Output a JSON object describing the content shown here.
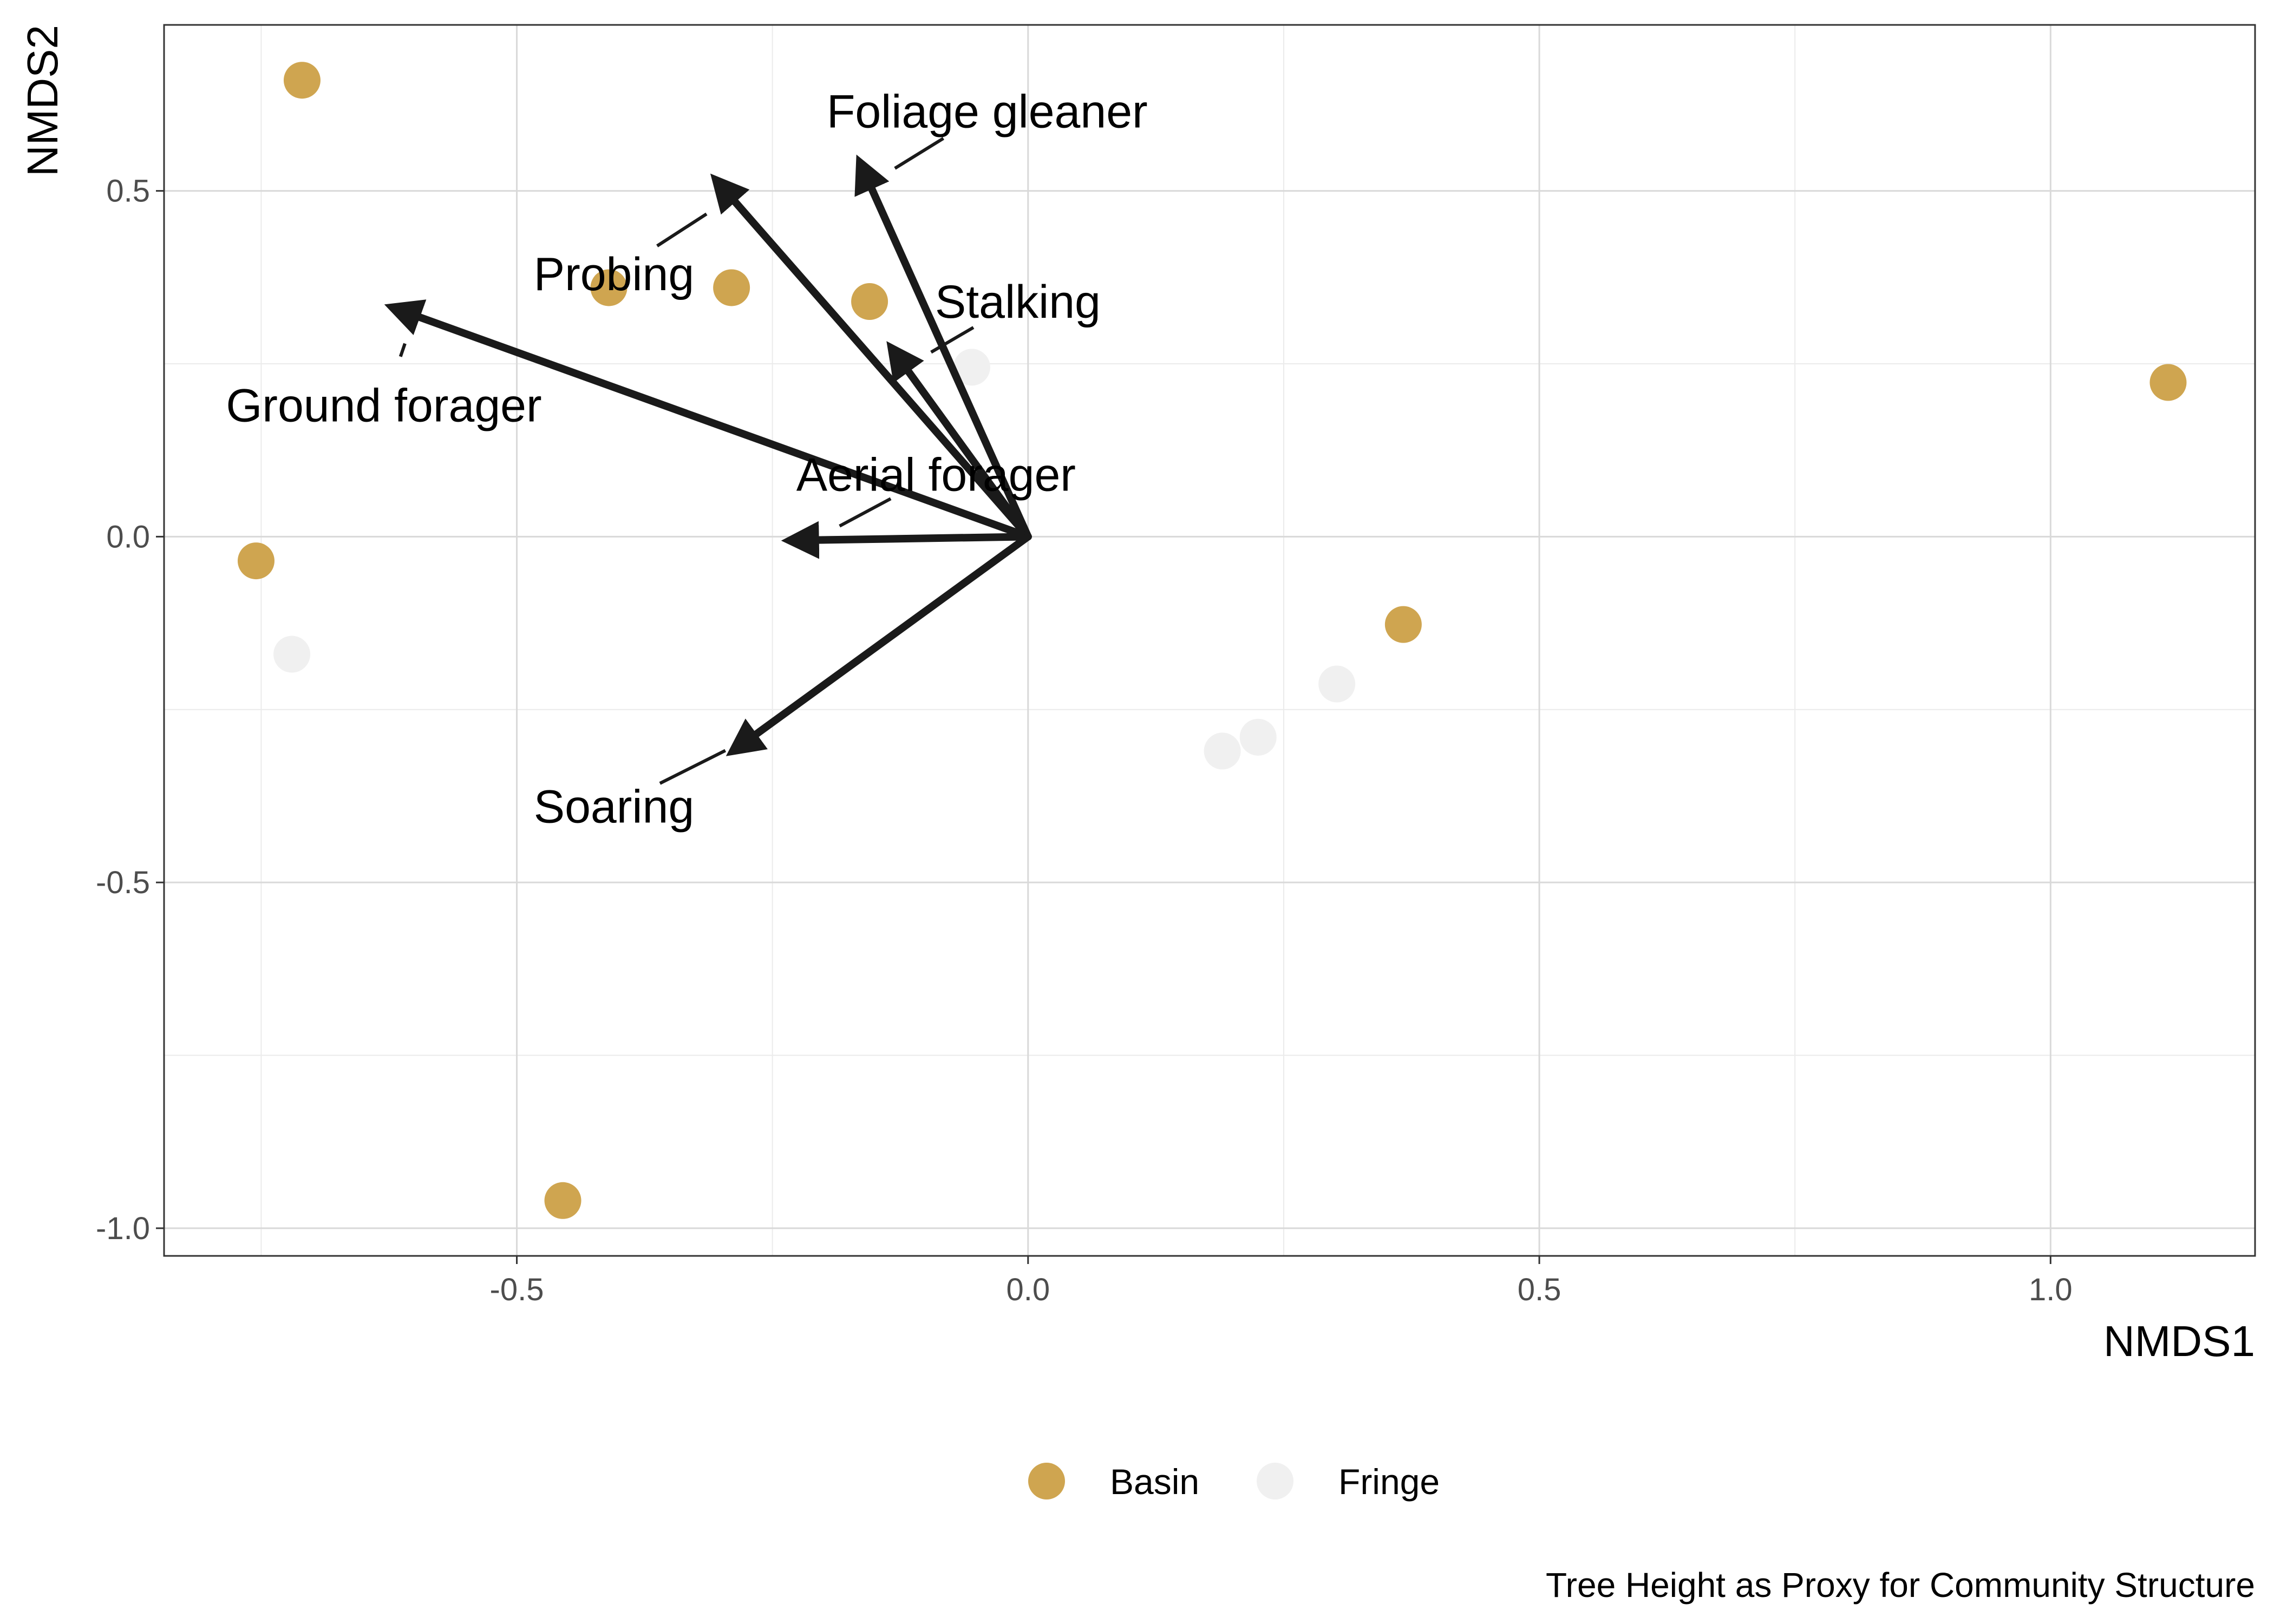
{
  "chart_data": {
    "type": "scatter",
    "xlabel": "NMDS1",
    "ylabel": "NMDS2",
    "caption": "Tree Height as Proxy for Community Structure",
    "xlim": [
      -0.845,
      1.2
    ],
    "ylim": [
      -1.04,
      0.74
    ],
    "xticks": [
      -0.5,
      0.0,
      0.5,
      1.0
    ],
    "xtick_labels": [
      "-0.5",
      "0.0",
      "0.5",
      "1.0"
    ],
    "yticks": [
      -1.0,
      -0.5,
      0.0,
      0.5
    ],
    "ytick_labels": [
      "-1.0",
      "-0.5",
      "0.0",
      "0.5"
    ],
    "grid": true,
    "legend_position": "bottom",
    "series": [
      {
        "name": "Basin",
        "color": "#cfa550",
        "points": [
          [
            -0.71,
            0.66
          ],
          [
            -0.41,
            0.36
          ],
          [
            -0.29,
            0.36
          ],
          [
            -0.155,
            0.34
          ],
          [
            -0.755,
            -0.035
          ],
          [
            -0.455,
            -0.96
          ],
          [
            0.367,
            -0.127
          ],
          [
            1.115,
            0.223
          ]
        ]
      },
      {
        "name": "Fringe",
        "color": "#f0f0f0",
        "points": [
          [
            -0.055,
            0.245
          ],
          [
            -0.72,
            -0.17
          ],
          [
            0.19,
            -0.31
          ],
          [
            0.225,
            -0.29
          ],
          [
            0.302,
            -0.213
          ]
        ]
      }
    ],
    "vectors": [
      {
        "label": "Foliage gleaner",
        "x": -0.155,
        "y": 0.51,
        "label_x": -0.04,
        "label_y": 0.615
      },
      {
        "label": "Probing",
        "x": -0.29,
        "y": 0.49,
        "label_x": -0.405,
        "label_y": 0.38
      },
      {
        "label": "Stalking",
        "x": -0.12,
        "y": 0.245,
        "label_x": -0.01,
        "label_y": 0.34
      },
      {
        "label": "Ground forager",
        "x": -0.6,
        "y": 0.32,
        "label_x": -0.63,
        "label_y": 0.19
      },
      {
        "label": "Aerial forager",
        "x": -0.21,
        "y": -0.005,
        "label_x": -0.09,
        "label_y": 0.09
      },
      {
        "label": "Soaring",
        "x": -0.27,
        "y": -0.29,
        "label_x": -0.405,
        "label_y": -0.39
      }
    ],
    "vector_color": "#1a1a1a"
  }
}
